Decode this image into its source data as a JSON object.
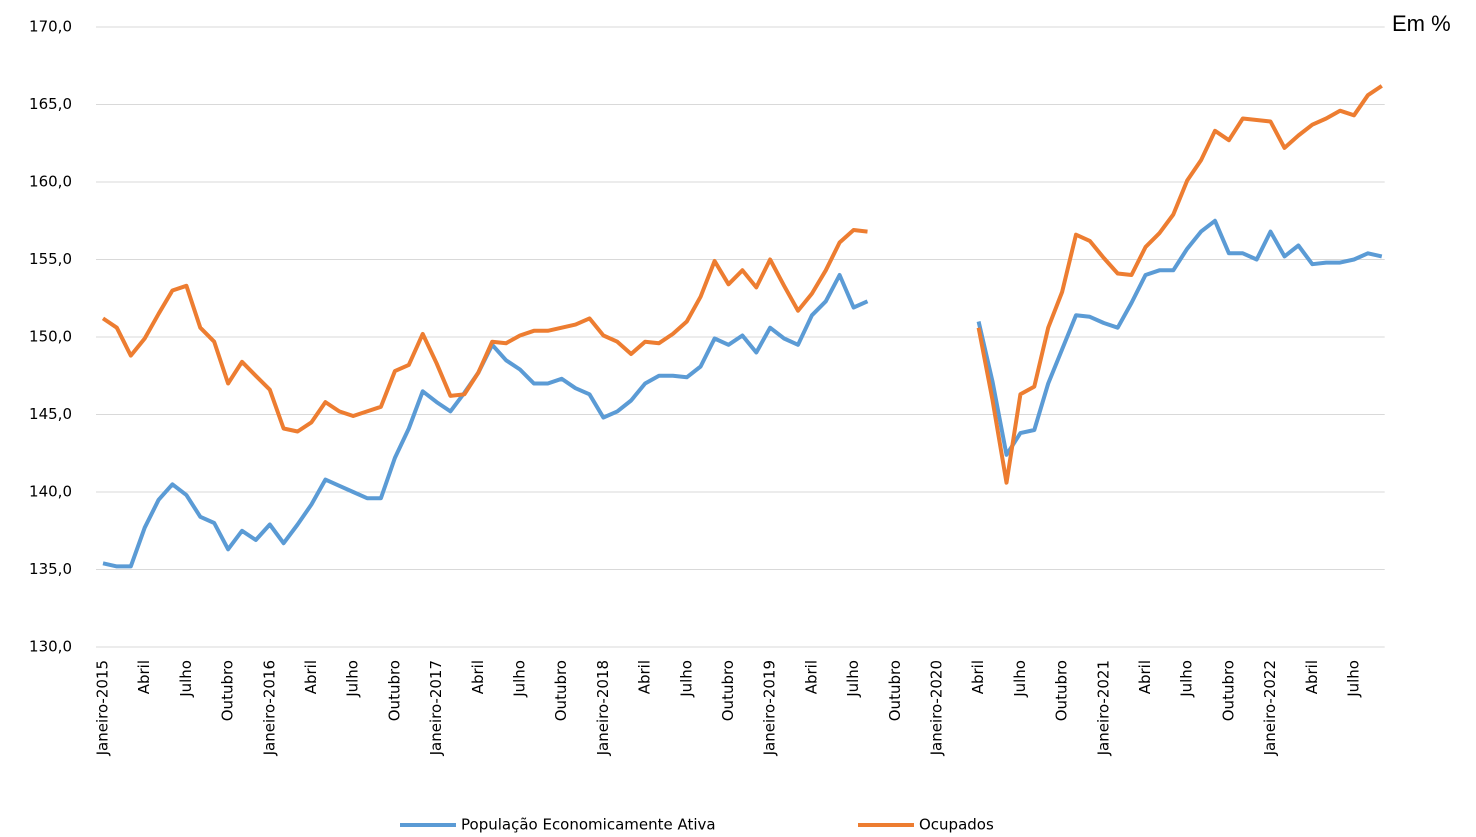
{
  "chart_data": {
    "type": "line",
    "annotation": "Em %",
    "categories": [
      "Janeiro-2015",
      null,
      null,
      "Abril",
      null,
      null,
      "Julho",
      null,
      null,
      "Outubro",
      null,
      null,
      "Janeiro-2016",
      null,
      null,
      "Abril",
      null,
      null,
      "Julho",
      null,
      null,
      "Outubro",
      null,
      null,
      "Janeiro-2017",
      null,
      null,
      "Abril",
      null,
      null,
      "Julho",
      null,
      null,
      "Outubro",
      null,
      null,
      "Janeiro-2018",
      null,
      null,
      "Abril",
      null,
      null,
      "Julho",
      null,
      null,
      "Outubro",
      null,
      null,
      "Janeiro-2019",
      null,
      null,
      "Abril",
      null,
      null,
      "Julho",
      null,
      null,
      "Outubro",
      null,
      null,
      "Janeiro-2020",
      null,
      null,
      "Abril",
      null,
      null,
      "Julho",
      null,
      null,
      "Outubro",
      null,
      null,
      "Janeiro-2021",
      null,
      null,
      "Abril",
      null,
      null,
      "Julho",
      null,
      null,
      "Outubro",
      null,
      null,
      "Janeiro-2022",
      null,
      null,
      "Abril",
      null,
      null,
      "Julho",
      null,
      null
    ],
    "series": [
      {
        "name": "População Economicamente Ativa",
        "color": "#5b9bd5",
        "values": [
          135.4,
          135.2,
          135.2,
          137.7,
          139.5,
          140.5,
          139.8,
          138.4,
          138.0,
          136.3,
          137.5,
          136.9,
          137.9,
          136.7,
          137.9,
          139.2,
          140.8,
          140.4,
          140.0,
          139.6,
          139.6,
          142.2,
          144.1,
          146.5,
          145.8,
          145.2,
          146.4,
          147.7,
          149.5,
          148.5,
          147.9,
          147.0,
          147.0,
          147.3,
          146.7,
          146.3,
          144.8,
          145.2,
          145.9,
          147.0,
          147.5,
          147.5,
          147.4,
          148.1,
          149.9,
          149.5,
          150.1,
          149.0,
          150.6,
          149.9,
          149.5,
          151.4,
          152.3,
          154.0,
          151.9,
          152.3,
          null,
          null,
          null,
          null,
          null,
          null,
          null,
          151.0,
          147.1,
          142.4,
          143.8,
          144.0,
          147.0,
          149.2,
          151.4,
          151.3,
          150.9,
          150.6,
          152.2,
          154.0,
          154.3,
          154.3,
          155.7,
          156.8,
          157.5,
          155.4,
          155.4,
          155.0,
          156.8,
          155.2,
          155.9,
          154.7,
          154.8,
          154.8,
          155.0,
          155.4,
          155.2
        ]
      },
      {
        "name": "Ocupados",
        "color": "#ed7d31",
        "values": [
          151.2,
          150.6,
          148.8,
          149.9,
          151.5,
          153.0,
          153.3,
          150.6,
          149.7,
          147.0,
          148.4,
          147.5,
          146.6,
          144.1,
          143.9,
          144.5,
          145.8,
          145.2,
          144.9,
          145.2,
          145.5,
          147.8,
          148.2,
          150.2,
          148.3,
          146.2,
          146.3,
          147.7,
          149.7,
          149.6,
          150.1,
          150.4,
          150.4,
          150.6,
          150.8,
          151.2,
          150.1,
          149.7,
          148.9,
          149.7,
          149.6,
          150.2,
          151.0,
          152.6,
          154.9,
          153.4,
          154.3,
          153.2,
          155.0,
          153.3,
          151.7,
          152.8,
          154.3,
          156.1,
          156.9,
          156.8,
          null,
          null,
          null,
          null,
          null,
          null,
          null,
          150.6,
          145.9,
          140.6,
          146.3,
          146.8,
          150.6,
          152.9,
          156.6,
          156.2,
          155.1,
          154.1,
          154.0,
          155.8,
          156.7,
          157.9,
          160.1,
          161.4,
          163.3,
          162.7,
          164.1,
          164.0,
          163.9,
          162.2,
          163.0,
          163.7,
          164.1,
          164.6,
          164.3,
          165.6,
          166.2
        ]
      }
    ],
    "ylim": [
      130,
      170
    ],
    "yticks": [
      {
        "value": 130,
        "label": "130,0"
      },
      {
        "value": 135,
        "label": "135,0"
      },
      {
        "value": 140,
        "label": "140,0"
      },
      {
        "value": 145,
        "label": "145,0"
      },
      {
        "value": 150,
        "label": "150,0"
      },
      {
        "value": 155,
        "label": "155,0"
      },
      {
        "value": 160,
        "label": "160,0"
      },
      {
        "value": 165,
        "label": "165,0"
      },
      {
        "value": 170,
        "label": "170,0"
      }
    ],
    "grid": true,
    "legend": "bottom"
  }
}
